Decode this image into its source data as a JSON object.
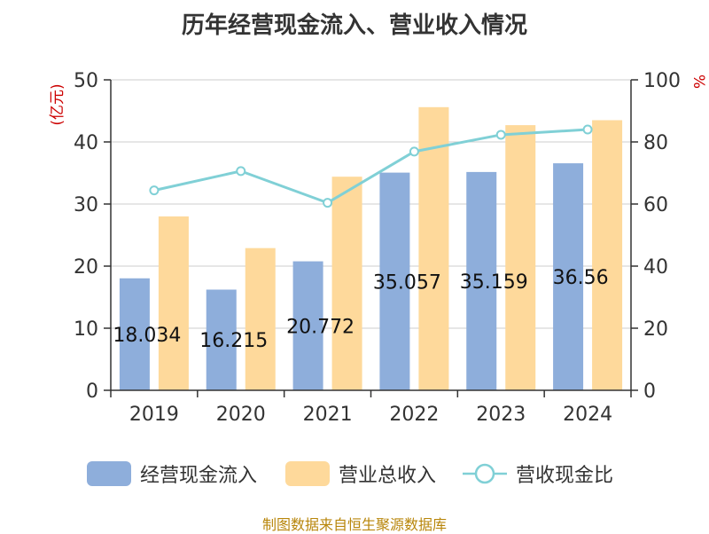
{
  "chart_data": {
    "type": "bar",
    "title": "历年经营现金流入、营业收入情况",
    "categories": [
      "2019",
      "2020",
      "2021",
      "2022",
      "2023",
      "2024"
    ],
    "ylabel_left": "(亿元)",
    "ylabel_right": "%",
    "ylim_left": [
      0,
      50
    ],
    "ylim_right": [
      0,
      100
    ],
    "yticks_left": [
      "0",
      "10",
      "20",
      "30",
      "40",
      "50"
    ],
    "yticks_right": [
      "0",
      "20",
      "40",
      "60",
      "80",
      "100"
    ],
    "grid": true,
    "series": [
      {
        "name": "经营现金流入",
        "type": "bar",
        "axis": "left",
        "color": "#8eaedb",
        "values": [
          18.034,
          16.215,
          20.772,
          35.057,
          35.159,
          36.56
        ],
        "labels": [
          "18.034",
          "16.215",
          "20.772",
          "35.057",
          "35.159",
          "36.56"
        ]
      },
      {
        "name": "营业总收入",
        "type": "bar",
        "axis": "left",
        "color": "#fed99b",
        "values": [
          28.0,
          22.9,
          34.4,
          45.6,
          42.7,
          43.5
        ]
      },
      {
        "name": "营收现金比",
        "type": "line",
        "axis": "right",
        "color": "#80d0d6",
        "values": [
          64.4,
          70.6,
          60.4,
          76.9,
          82.3,
          84.0
        ]
      }
    ]
  },
  "source_text": "制图数据来自恒生聚源数据库",
  "colors": {
    "axis_text": "#333333",
    "unit_red": "#cc0000",
    "source": "#b8860b",
    "grid": "#cccccc"
  }
}
